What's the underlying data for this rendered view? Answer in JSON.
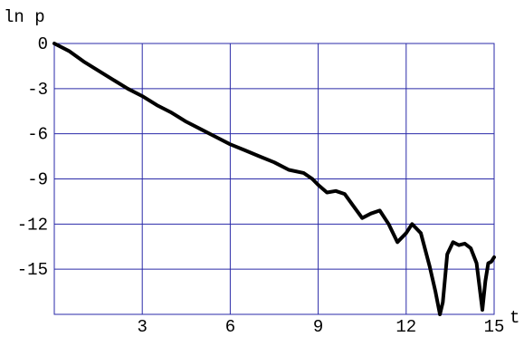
{
  "chart_data": {
    "type": "line",
    "xlabel": "t",
    "ylabel": "ln p",
    "xlim": [
      0,
      15
    ],
    "ylim": [
      -18,
      0
    ],
    "x_ticks": [
      3,
      6,
      9,
      12,
      15
    ],
    "x_tick_labels": [
      "3",
      "6",
      "9",
      "12",
      "15"
    ],
    "y_ticks": [
      0,
      -3,
      -6,
      -9,
      -12,
      -15
    ],
    "y_tick_labels": [
      "0",
      "-3",
      "-6",
      "-9",
      "-12",
      "-15"
    ],
    "grid": true,
    "colors": {
      "grid": "#2a2aa8",
      "line": "#000000"
    },
    "series": [
      {
        "x": [
          0,
          0.5,
          1,
          1.5,
          2,
          2.5,
          3,
          3.5,
          4,
          4.5,
          5,
          5.5,
          6,
          6.5,
          7,
          7.5,
          8,
          8.5,
          8.8,
          9,
          9.3,
          9.6,
          9.9,
          10.2,
          10.5,
          10.8,
          11.1,
          11.4,
          11.7,
          12,
          12.2,
          12.5,
          12.8,
          13.0,
          13.15,
          13.25,
          13.4,
          13.6,
          13.8,
          14.0,
          14.2,
          14.4,
          14.6,
          14.7,
          14.8,
          14.9,
          15
        ],
        "y": [
          0,
          -0.5,
          -1.2,
          -1.8,
          -2.4,
          -3.0,
          -3.5,
          -4.1,
          -4.6,
          -5.2,
          -5.7,
          -6.2,
          -6.7,
          -7.1,
          -7.5,
          -7.9,
          -8.4,
          -8.6,
          -9.0,
          -9.4,
          -9.9,
          -9.8,
          -10.0,
          -10.8,
          -11.6,
          -11.3,
          -11.1,
          -12.0,
          -13.2,
          -12.6,
          -12.0,
          -12.6,
          -14.8,
          -16.5,
          -18.0,
          -17.2,
          -14.0,
          -13.2,
          -13.4,
          -13.3,
          -13.6,
          -14.6,
          -17.7,
          -15.8,
          -14.6,
          -14.5,
          -14.2
        ]
      }
    ]
  }
}
